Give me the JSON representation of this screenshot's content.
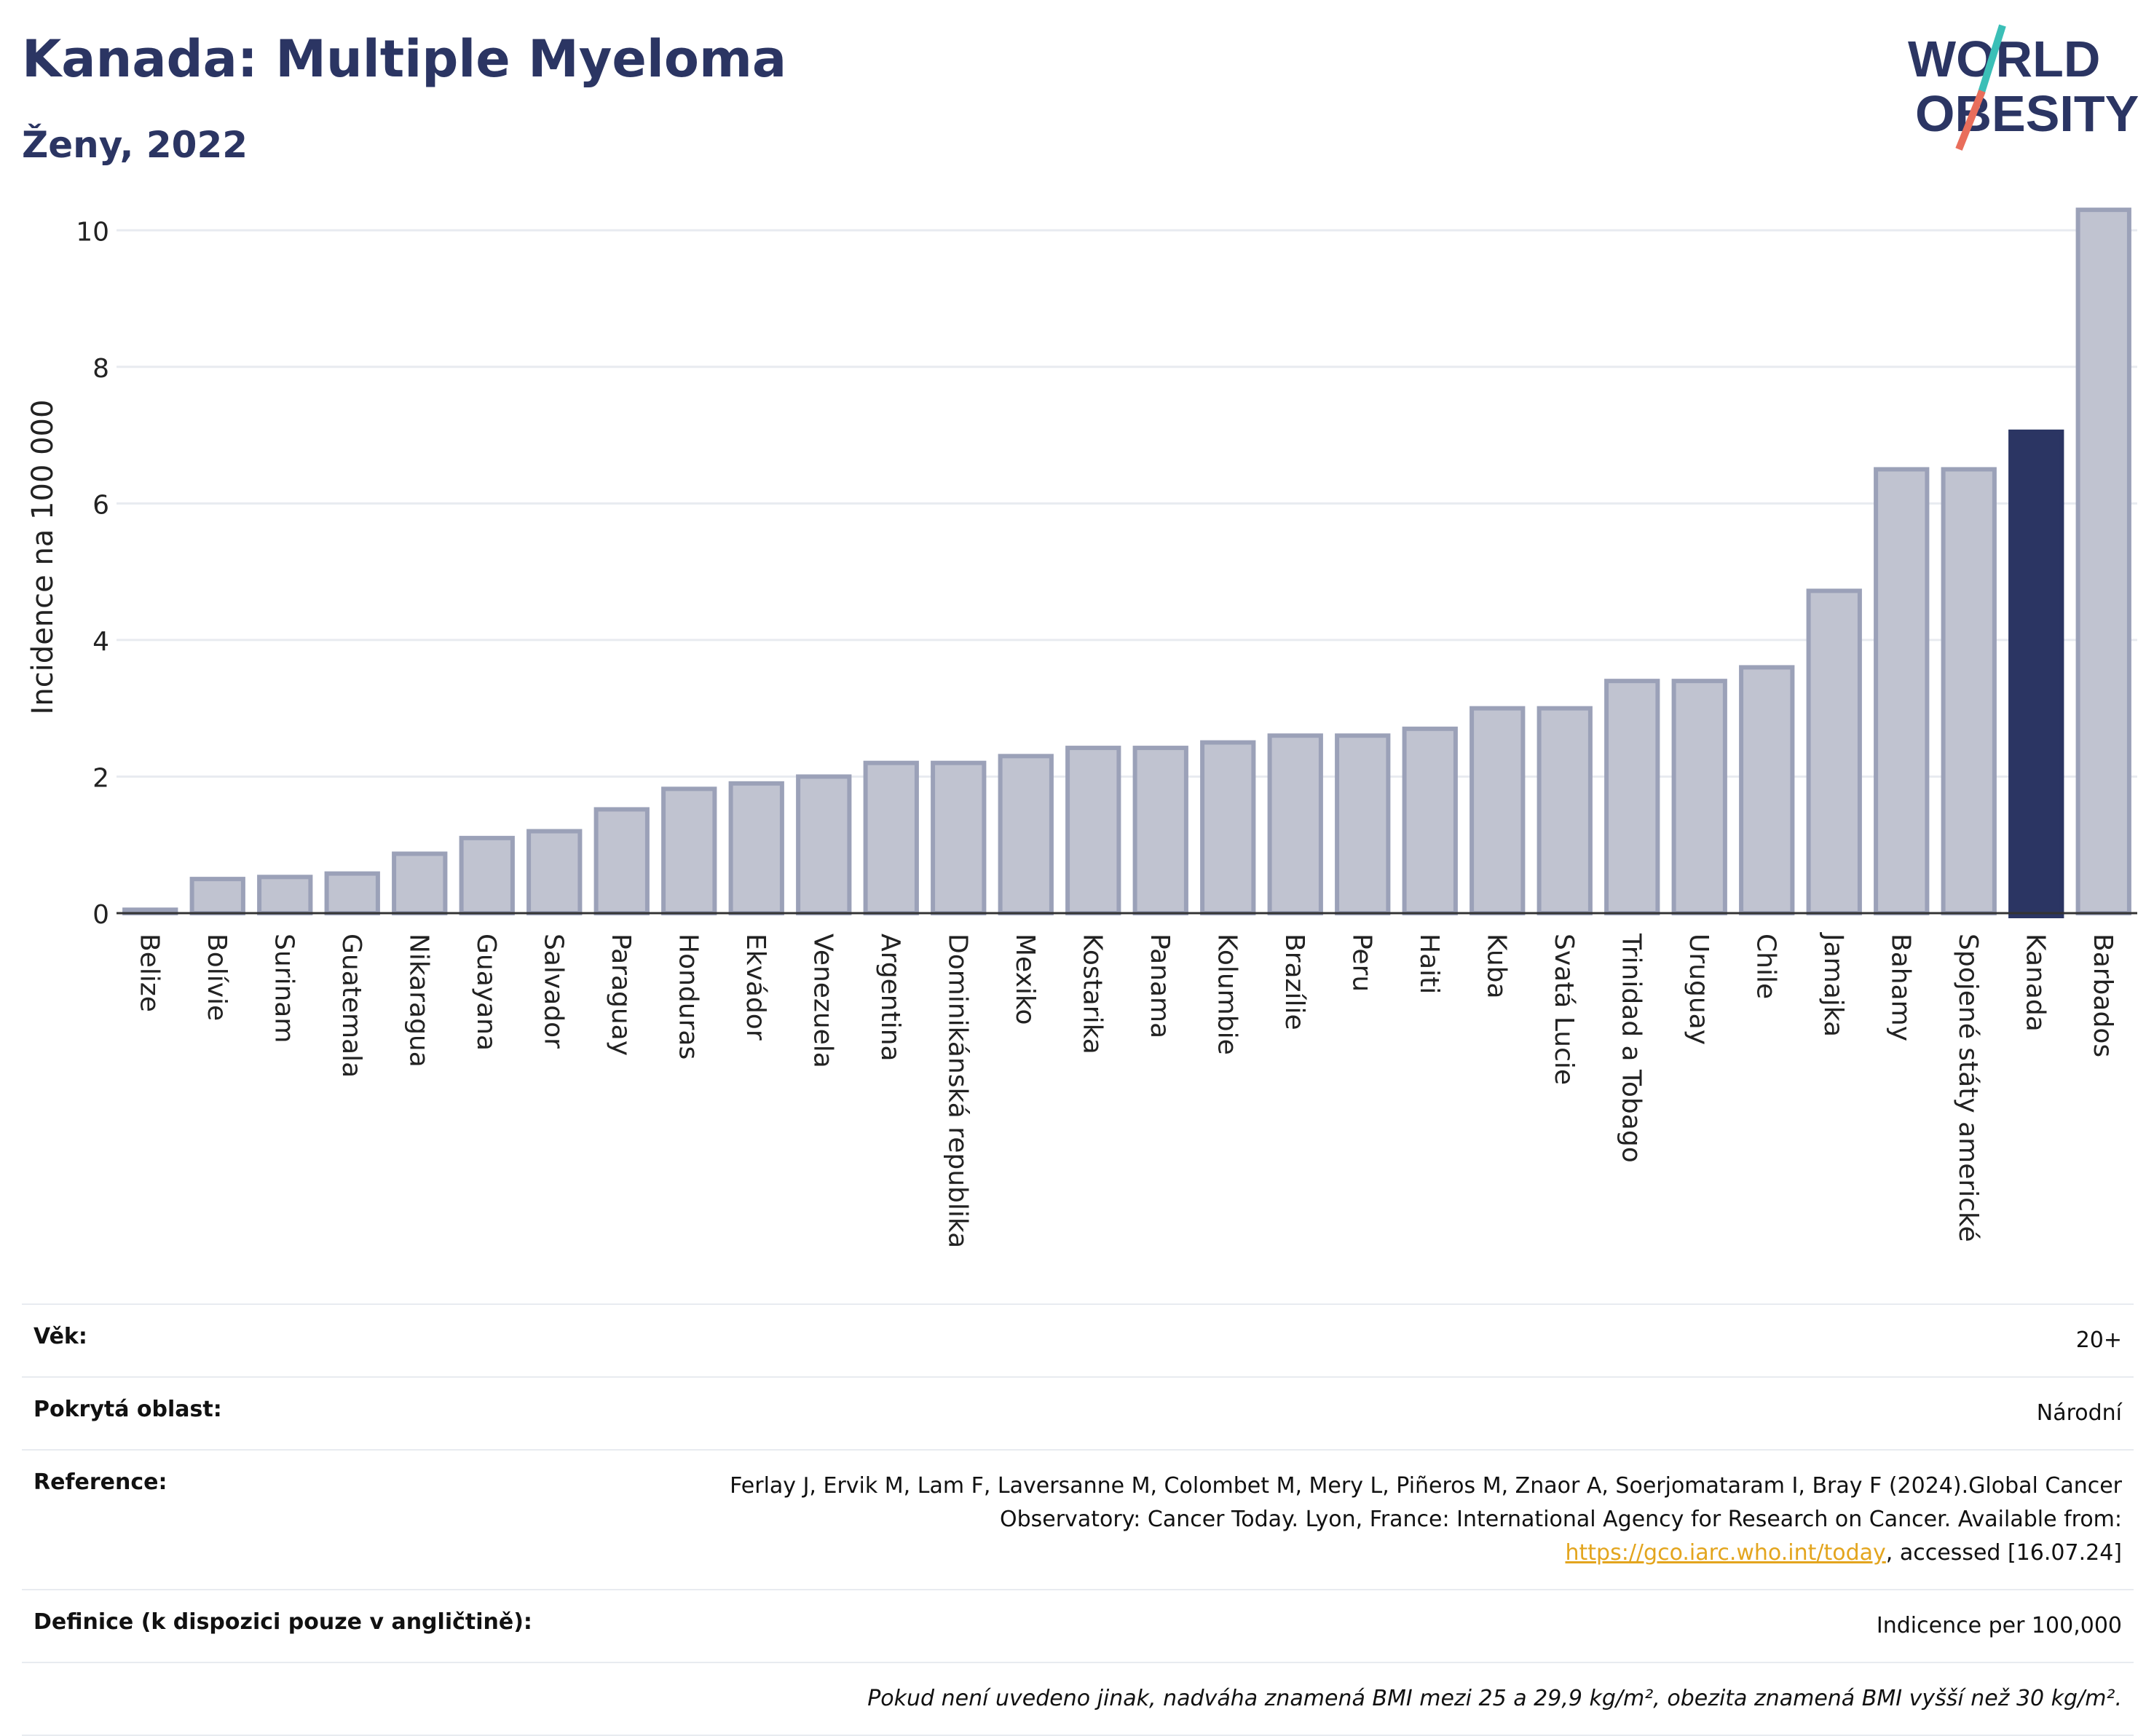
{
  "header": {
    "title": "Kanada: Multiple Myeloma",
    "subtitle": "Ženy, 2022"
  },
  "logo": {
    "line1": "WORLD",
    "line2": "OBESITY"
  },
  "chart_data": {
    "type": "bar",
    "ylabel": "Incidence na 100 000",
    "ylim": [
      0,
      10.6
    ],
    "yticks": [
      0,
      2,
      4,
      6,
      8,
      10
    ],
    "grid": true,
    "categories": [
      "Belize",
      "Bolívie",
      "Surinam",
      "Guatemala",
      "Nikaragua",
      "Guayana",
      "Salvador",
      "Paraguay",
      "Honduras",
      "Ekvádor",
      "Venezuela",
      "Argentina",
      "Dominikánská republika",
      "Mexiko",
      "Kostarika",
      "Panama",
      "Kolumbie",
      "Brazílie",
      "Peru",
      "Haiti",
      "Kuba",
      "Svatá Lucie",
      "Trinidad a Tobago",
      "Uruguay",
      "Chile",
      "Jamajka",
      "Bahamy",
      "Spojené státy americké",
      "Kanada",
      "Barbados"
    ],
    "values": [
      0.05,
      0.5,
      0.53,
      0.58,
      0.87,
      1.1,
      1.2,
      1.52,
      1.82,
      1.9,
      2.0,
      2.2,
      2.2,
      2.3,
      2.42,
      2.42,
      2.5,
      2.6,
      2.6,
      2.7,
      3.0,
      3.0,
      3.4,
      3.4,
      3.6,
      4.72,
      6.5,
      6.5,
      7.05,
      10.3
    ],
    "highlight": "Kanada",
    "colors": {
      "bar": "#c0c3d0",
      "bar_border": "#9ba1b8",
      "highlight": "#2b3563",
      "grid": "#e8ebf0",
      "axis": "#333333"
    }
  },
  "info": {
    "age_label": "Věk:",
    "age_value": "20+",
    "area_label": "Pokrytá oblast:",
    "area_value": "Národní",
    "ref_label": "Reference:",
    "ref_text1": "Ferlay J, Ervik M, Lam F, Laversanne M, Colombet M, Mery L, Piñeros M, Znaor A, Soerjomataram I, Bray F (2024).Global Cancer Observatory: Cancer Today. Lyon, France: International Agency for Research on Cancer. Available from: ",
    "ref_link": "https://gco.iarc.who.int/today",
    "ref_text2": ", accessed [16.07.24]",
    "def_label": "Definice (k dispozici pouze v angličtině):",
    "def_value": "Indicence per 100,000",
    "note": "Pokud není uvedeno jinak, nadváha znamená BMI mezi 25 a 29,9 kg/m², obezita znamená BMI vyšší než 30 kg/m²."
  }
}
